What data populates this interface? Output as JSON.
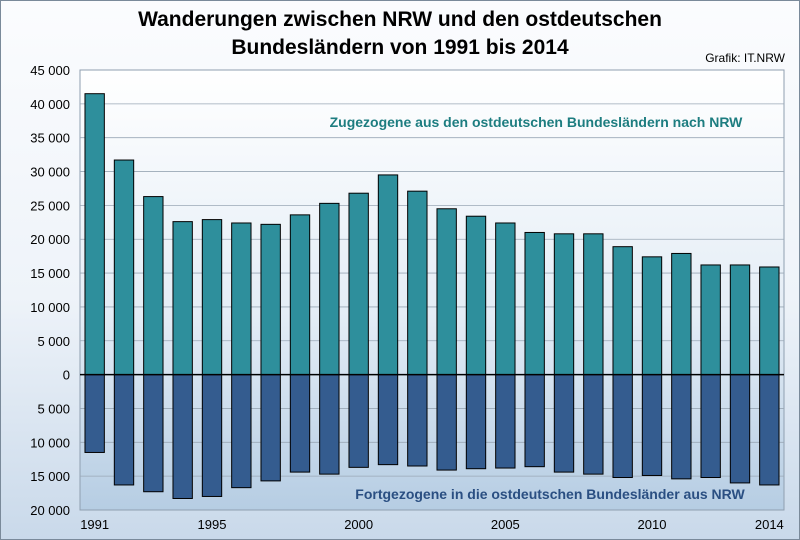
{
  "header": {
    "title_line1": "Wanderungen zwischen NRW und den ostdeutschen",
    "title_line2": "Bundesländern von 1991 bis 2014",
    "source": "Grafik: IT.NRW"
  },
  "colors": {
    "zuzug": "#2e8f9c",
    "fortzug": "#345c8f",
    "zuzug_label": "#1d7d80",
    "fortzug_label": "#2a4f82"
  },
  "chart_data": {
    "type": "bar",
    "title": "Wanderungen zwischen NRW und den ostdeutschen Bundesländern von 1991 bis 2014",
    "categories": [
      "1991",
      "1992",
      "1993",
      "1994",
      "1995",
      "1996",
      "1997",
      "1998",
      "1999",
      "2000",
      "2001",
      "2002",
      "2003",
      "2004",
      "2005",
      "2006",
      "2007",
      "2008",
      "2009",
      "2010",
      "2011",
      "2012",
      "2013",
      "2014"
    ],
    "x_tick_labels": [
      "1991",
      "1995",
      "2000",
      "2005",
      "2010",
      "2014"
    ],
    "y_tick_labels_up": [
      "45 000",
      "40 000",
      "35 000",
      "30 000",
      "25 000",
      "20 000",
      "15 000",
      "10 000",
      "5 000",
      "0"
    ],
    "y_tick_labels_down": [
      "5 000",
      "10 000",
      "15 000",
      "20 000"
    ],
    "ylim": [
      -20000,
      45000
    ],
    "grid": true,
    "series": [
      {
        "name": "Zugezogene aus den ostdeutschen Bundesländern nach NRW",
        "values": [
          41500,
          31700,
          26300,
          22600,
          22900,
          22400,
          22200,
          23600,
          25300,
          26800,
          29500,
          27100,
          24500,
          23400,
          22400,
          21000,
          20800,
          20800,
          18900,
          17400,
          17900,
          16200,
          16200,
          15900
        ]
      },
      {
        "name": "Fortgezogene in die ostdeutschen Bundesländer aus NRW",
        "values": [
          11500,
          16300,
          17300,
          18300,
          18000,
          16700,
          15700,
          14400,
          14700,
          13700,
          13300,
          13500,
          14100,
          13900,
          13800,
          13600,
          14400,
          14700,
          15200,
          14900,
          15400,
          15200,
          16000,
          16300
        ]
      }
    ]
  }
}
